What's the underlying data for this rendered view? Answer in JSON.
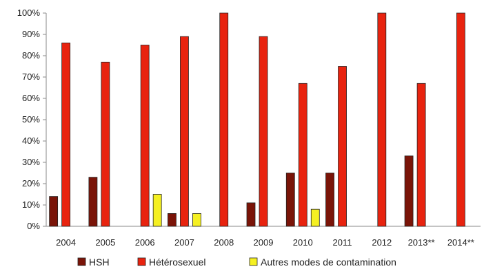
{
  "chart_data": {
    "type": "bar",
    "categories": [
      "2004",
      "2005",
      "2006",
      "2007",
      "2008",
      "2009",
      "2010",
      "2011",
      "2012",
      "2013**",
      "2014**"
    ],
    "series": [
      {
        "name": "HSH",
        "color": "#7a1408",
        "values": [
          14,
          23,
          0,
          6,
          0,
          11,
          25,
          25,
          0,
          33,
          0
        ]
      },
      {
        "name": "Hétérosexuel",
        "color": "#e8230f",
        "values": [
          86,
          77,
          85,
          89,
          100,
          89,
          67,
          75,
          100,
          67,
          100
        ]
      },
      {
        "name": "Autres modes de contamination",
        "color": "#f5f022",
        "values": [
          0,
          0,
          15,
          6,
          0,
          0,
          8,
          0,
          0,
          0,
          0
        ]
      }
    ],
    "ylim": [
      0,
      100
    ],
    "yticks": [
      "0%",
      "10%",
      "20%",
      "30%",
      "40%",
      "50%",
      "60%",
      "70%",
      "80%",
      "90%",
      "100%"
    ],
    "title": "",
    "xlabel": "",
    "ylabel": "",
    "grid": false,
    "legend_position": "bottom"
  }
}
